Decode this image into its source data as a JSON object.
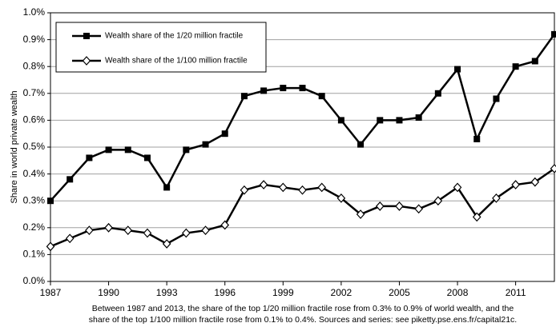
{
  "chart_data": {
    "type": "line",
    "y_label": "Share in world private wealth",
    "x": [
      1987,
      1988,
      1989,
      1990,
      1991,
      1992,
      1993,
      1994,
      1995,
      1996,
      1997,
      1998,
      1999,
      2000,
      2001,
      2002,
      2003,
      2004,
      2005,
      2006,
      2007,
      2008,
      2009,
      2010,
      2011,
      2012,
      2013
    ],
    "series": [
      {
        "name": "Wealth share of the 1/20 million fractile",
        "color": "#000000",
        "marker": "square",
        "values": [
          0.3,
          0.38,
          0.46,
          0.49,
          0.49,
          0.46,
          0.35,
          0.49,
          0.51,
          0.55,
          0.69,
          0.71,
          0.72,
          0.72,
          0.69,
          0.6,
          0.51,
          0.6,
          0.6,
          0.61,
          0.7,
          0.79,
          0.53,
          0.68,
          0.8,
          0.82,
          0.92
        ]
      },
      {
        "name": "Wealth share of the 1/100 million fractile",
        "color": "#000000",
        "marker": "diamond",
        "values": [
          0.13,
          0.16,
          0.19,
          0.2,
          0.19,
          0.18,
          0.14,
          0.18,
          0.19,
          0.21,
          0.34,
          0.36,
          0.35,
          0.34,
          0.35,
          0.31,
          0.25,
          0.28,
          0.28,
          0.27,
          0.3,
          0.35,
          0.24,
          0.31,
          0.36,
          0.37,
          0.42
        ]
      }
    ],
    "xlim": [
      1987,
      2013
    ],
    "xticks": [
      1987,
      1990,
      1993,
      1996,
      1999,
      2002,
      2005,
      2008,
      2011
    ],
    "ylim": [
      0,
      1.0
    ],
    "yticks": [
      {
        "value": 0,
        "label": "0.0%"
      },
      {
        "value": 0.1,
        "label": "0.1%"
      },
      {
        "value": 0.2,
        "label": "0.2%"
      },
      {
        "value": 0.3,
        "label": "0.3%"
      },
      {
        "value": 0.4,
        "label": "0.4%"
      },
      {
        "value": 0.5,
        "label": "0.5%"
      },
      {
        "value": 0.6,
        "label": "0.6%"
      },
      {
        "value": 0.7,
        "label": "0.7%"
      },
      {
        "value": 0.8,
        "label": "0.8%"
      },
      {
        "value": 0.9,
        "label": "0.9%"
      },
      {
        "value": 1.0,
        "label": "1.0%"
      }
    ],
    "grid": true,
    "legend": "top-left",
    "caption": [
      "Between 1987 and 2013, the share of the top 1/20 million fractile rose from 0.3% to 0.9% of world wealth, and the",
      "share of the top 1/100 million fractile rose from 0.1% to 0.4%. Sources and series: see piketty.pse.ens.fr/capital21c."
    ]
  }
}
